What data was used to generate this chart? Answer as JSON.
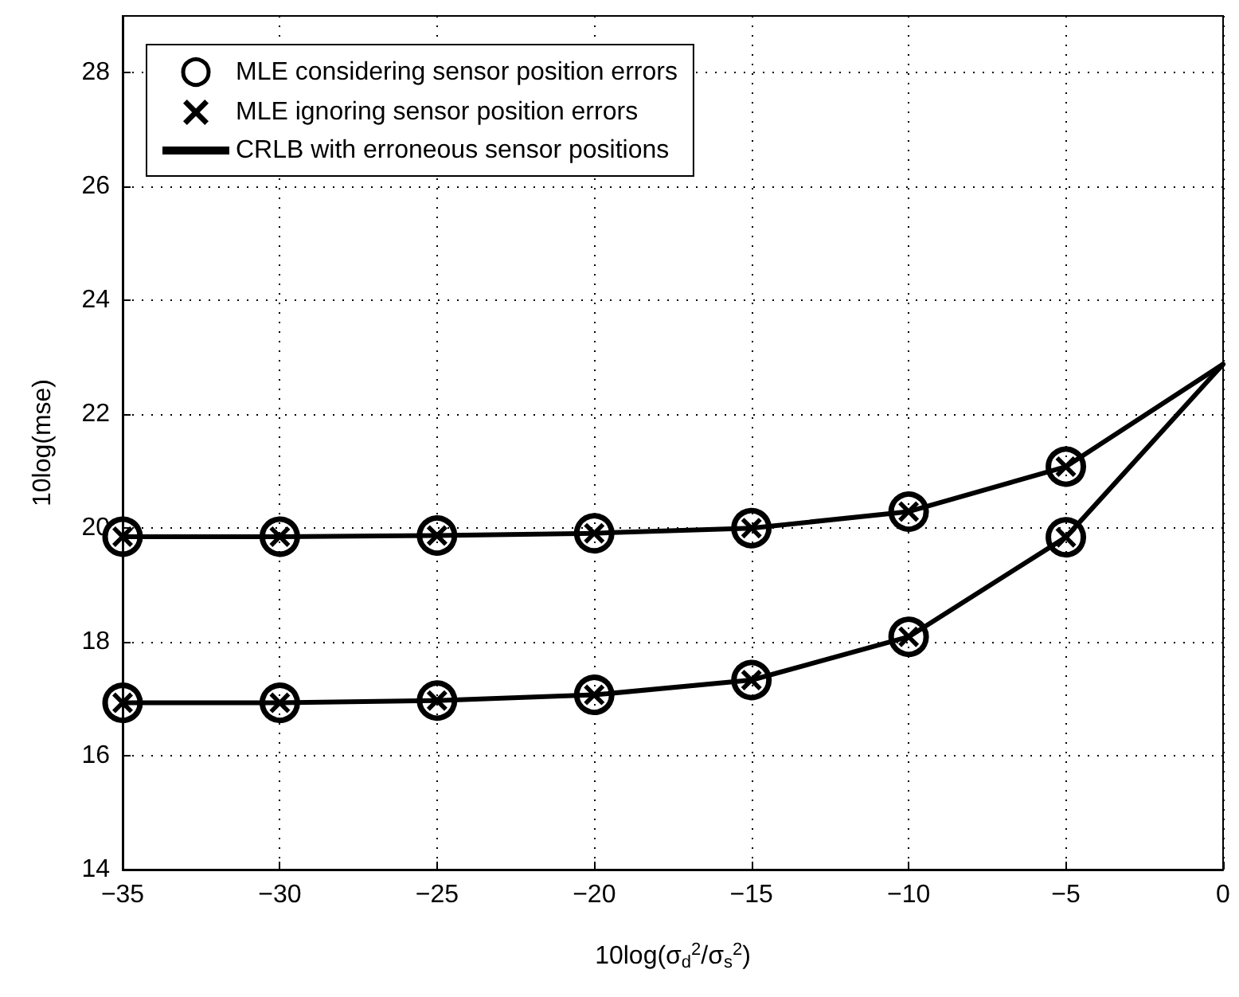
{
  "chart_data": {
    "type": "line",
    "xlabel": "10log(σ$_{d}$$^{2}$/σ$_{s}$$^{2}$)",
    "ylabel": "10log(mse)",
    "x": [
      -35,
      -30,
      -25,
      -20,
      -15,
      -10,
      -5,
      0
    ],
    "xlim": [
      -35,
      0
    ],
    "xticks": [
      -35,
      -30,
      -25,
      -20,
      -15,
      -10,
      -5,
      0
    ],
    "ylim": [
      14,
      29
    ],
    "yticks": [
      14,
      16,
      18,
      20,
      22,
      24,
      26,
      28
    ],
    "grid": true,
    "legend": "top left",
    "series": [
      {
        "name": "MLE considering sensor position errors",
        "type": "scatter",
        "marker": "circle",
        "color": "#000000",
        "values": [
          19.85,
          19.85,
          19.87,
          19.91,
          20.0,
          20.29,
          21.08,
          null
        ]
      },
      {
        "type": "scatter",
        "marker": "circle",
        "color": "#000000",
        "values": [
          16.93,
          16.93,
          16.97,
          17.07,
          17.33,
          18.09,
          19.84,
          null
        ]
      },
      {
        "name": "MLE ignoring sensor position errors",
        "type": "scatter",
        "marker": "cross",
        "color": "#000000",
        "values": [
          19.85,
          19.85,
          19.87,
          19.91,
          20.0,
          20.29,
          21.08,
          null
        ]
      },
      {
        "type": "scatter",
        "marker": "cross",
        "color": "#000000",
        "values": [
          16.93,
          16.93,
          16.97,
          17.07,
          17.33,
          18.09,
          19.84,
          null
        ]
      },
      {
        "name": "CRLB with erroneous sensor positions",
        "marker": "none",
        "line_style": "solid",
        "color": "#000000",
        "values": [
          19.85,
          19.85,
          19.87,
          19.91,
          20.0,
          20.29,
          21.08,
          22.88
        ]
      },
      {
        "marker": "none",
        "line_style": "solid",
        "color": "#000000",
        "values": [
          16.93,
          16.93,
          16.97,
          17.07,
          17.33,
          18.09,
          19.84,
          22.88
        ]
      }
    ]
  }
}
